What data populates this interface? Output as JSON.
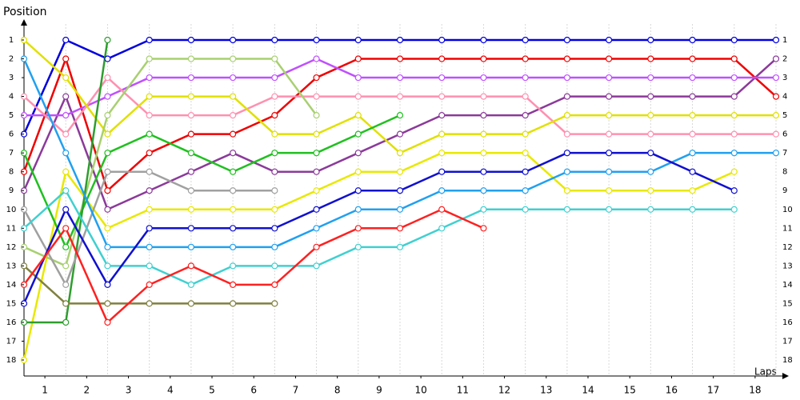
{
  "chart_data": {
    "type": "line",
    "title": "Position",
    "x_label": "Laps",
    "x": [
      0,
      1,
      2,
      3,
      4,
      5,
      6,
      7,
      8,
      9,
      10,
      11,
      12,
      13,
      14,
      15,
      16,
      17,
      18
    ],
    "xlim": [
      0,
      18
    ],
    "xticks": [
      {
        "value": 0.5,
        "label": "1"
      },
      {
        "value": 1.5,
        "label": "2"
      },
      {
        "value": 2.5,
        "label": "3"
      },
      {
        "value": 3.5,
        "label": "4"
      },
      {
        "value": 4.5,
        "label": "5"
      },
      {
        "value": 5.5,
        "label": "6"
      },
      {
        "value": 6.5,
        "label": "7"
      },
      {
        "value": 7.5,
        "label": "8"
      },
      {
        "value": 8.5,
        "label": "9"
      },
      {
        "value": 9.5,
        "label": "10"
      },
      {
        "value": 10.5,
        "label": "11"
      },
      {
        "value": 11.5,
        "label": "12"
      },
      {
        "value": 12.5,
        "label": "13"
      },
      {
        "value": 13.5,
        "label": "14"
      },
      {
        "value": 14.5,
        "label": "15"
      },
      {
        "value": 15.5,
        "label": "16"
      },
      {
        "value": 16.5,
        "label": "17"
      },
      {
        "value": 17.5,
        "label": "18"
      }
    ],
    "ylim": [
      18.85,
      0.15
    ],
    "yticks": [
      1,
      2,
      3,
      4,
      5,
      6,
      7,
      8,
      9,
      10,
      11,
      12,
      13,
      14,
      15,
      16,
      17,
      18
    ],
    "grid": true,
    "series": [
      {
        "color": "#0000e0",
        "values": [
          6,
          1,
          2,
          1,
          1,
          1,
          1,
          1,
          1,
          1,
          1,
          1,
          1,
          1,
          1,
          1,
          1,
          1,
          1
        ]
      },
      {
        "color": "#f00000",
        "values": [
          8,
          2,
          9,
          7,
          6,
          6,
          5,
          3,
          2,
          2,
          2,
          2,
          2,
          2,
          2,
          2,
          2,
          2,
          4
        ]
      },
      {
        "color": "#8b3a9a",
        "values": [
          9,
          4,
          10,
          9,
          8,
          7,
          8,
          8,
          7,
          6,
          5,
          5,
          5,
          4,
          4,
          4,
          4,
          4,
          2
        ]
      },
      {
        "color": "#c050ff",
        "values": [
          5,
          5,
          4,
          3,
          3,
          3,
          3,
          2,
          3,
          3,
          3,
          3,
          3,
          3,
          3,
          3,
          3,
          3,
          3
        ]
      },
      {
        "color": "#ff90b0",
        "values": [
          4,
          6,
          3,
          5,
          5,
          5,
          4,
          4,
          4,
          4,
          4,
          4,
          4,
          6,
          6,
          6,
          6,
          6,
          6
        ]
      },
      {
        "color": "#e0e000",
        "values": [
          1,
          3,
          6,
          4,
          4,
          4,
          6,
          6,
          5,
          7,
          6,
          6,
          6,
          5,
          5,
          5,
          5,
          5,
          5
        ]
      },
      {
        "color": "#e8e800",
        "values": [
          18,
          8,
          11,
          10,
          10,
          10,
          10,
          9,
          8,
          8,
          7,
          7,
          7,
          9,
          9,
          9,
          9,
          8,
          null
        ]
      },
      {
        "color": "#a8d070",
        "values": [
          12,
          13,
          5,
          2,
          2,
          2,
          2,
          5,
          null,
          null,
          null,
          null,
          null,
          null,
          null,
          null,
          null,
          null,
          null
        ]
      },
      {
        "color": "#20c020",
        "values": [
          7,
          12,
          7,
          6,
          7,
          8,
          7,
          7,
          6,
          5,
          null,
          null,
          null,
          null,
          null,
          null,
          null,
          null,
          null
        ]
      },
      {
        "color": "#2e9e2e",
        "values": [
          16,
          16,
          1,
          null,
          null,
          null,
          null,
          null,
          null,
          null,
          null,
          null,
          null,
          null,
          null,
          null,
          null,
          null,
          null
        ]
      },
      {
        "color": "#a0a0a0",
        "values": [
          10,
          14,
          8,
          8,
          9,
          9,
          9,
          null,
          null,
          null,
          null,
          null,
          null,
          null,
          null,
          null,
          null,
          null,
          null
        ]
      },
      {
        "color": "#808040",
        "values": [
          13,
          15,
          15,
          15,
          15,
          15,
          15,
          null,
          null,
          null,
          null,
          null,
          null,
          null,
          null,
          null,
          null,
          null,
          null
        ]
      },
      {
        "color": "#20a0f0",
        "values": [
          2,
          7,
          12,
          12,
          12,
          12,
          12,
          11,
          10,
          10,
          9,
          9,
          9,
          8,
          8,
          8,
          7,
          7,
          7
        ]
      },
      {
        "color": "#40d0d0",
        "values": [
          11,
          9,
          13,
          13,
          14,
          13,
          13,
          13,
          12,
          12,
          11,
          10,
          10,
          10,
          10,
          10,
          10,
          10,
          null
        ]
      },
      {
        "color": "#1010d0",
        "values": [
          15,
          10,
          14,
          11,
          11,
          11,
          11,
          10,
          9,
          9,
          8,
          8,
          8,
          7,
          7,
          7,
          8,
          9,
          null
        ]
      },
      {
        "color": "#ff2020",
        "values": [
          14,
          11,
          16,
          14,
          13,
          14,
          14,
          12,
          11,
          11,
          10,
          11,
          null,
          null,
          null,
          null,
          null,
          null,
          null
        ]
      }
    ]
  }
}
